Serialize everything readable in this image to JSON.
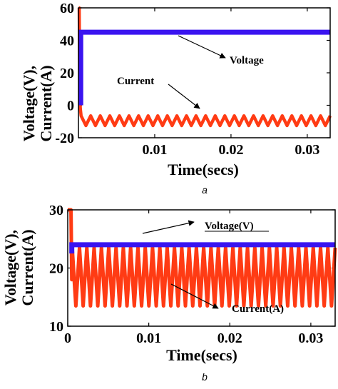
{
  "chart_data": [
    {
      "type": "line",
      "panel_label": "a",
      "xlabel": "Time(secs)",
      "ylabel": [
        "Voltage(V),",
        "Current(A)"
      ],
      "xlim": [
        0,
        0.033
      ],
      "ylim": [
        -20,
        60
      ],
      "xticks": [
        0.01,
        0.02,
        0.03
      ],
      "xtick_labels": [
        "0.01",
        "0.02",
        "0.03"
      ],
      "yticks": [
        -20,
        0,
        20,
        40,
        60
      ],
      "ytick_labels": [
        "-20",
        "0",
        "20",
        "40",
        "60"
      ],
      "grid": false,
      "series": [
        {
          "name": "Voltage",
          "color": "#3a14f0",
          "steady_value": 45,
          "start_time": 0.0003
        },
        {
          "name": "Current",
          "color": "#ff3b14",
          "initial_value": 60,
          "mean": -9.5,
          "ripple_min": -12.5,
          "ripple_max": -6.5,
          "cycles": 26
        }
      ],
      "annotations": [
        {
          "text": "Voltage",
          "points_to": [
            0.023,
            45
          ]
        },
        {
          "text": "Current",
          "points_to": [
            0.018,
            -6
          ]
        }
      ]
    },
    {
      "type": "line",
      "panel_label": "b",
      "xlabel": "Time(secs)",
      "ylabel": [
        "Voltage(V),",
        "Current(A)"
      ],
      "xlim": [
        0,
        0.033
      ],
      "ylim": [
        10,
        30
      ],
      "xticks": [
        0,
        0.01,
        0.02,
        0.03
      ],
      "xtick_labels": [
        "0",
        "0.01",
        "0.02",
        "0.03"
      ],
      "yticks": [
        10,
        20,
        30
      ],
      "ytick_labels": [
        "10",
        "20",
        "30"
      ],
      "grid": false,
      "series": [
        {
          "name": "Voltage(V)",
          "color": "#3a14f0",
          "steady_value": 24,
          "start_time": 0.0005
        },
        {
          "name": "Current(A)",
          "color": "#ff3b14",
          "initial_value": 30,
          "ripple_min": 13.5,
          "ripple_max": 23.5,
          "cycles": 36
        }
      ],
      "annotations": [
        {
          "text": "Voltage(V)",
          "points_to": [
            0.005,
            24.5
          ]
        },
        {
          "text": "Current(A)",
          "points_to": [
            0.01,
            18
          ]
        }
      ]
    }
  ]
}
